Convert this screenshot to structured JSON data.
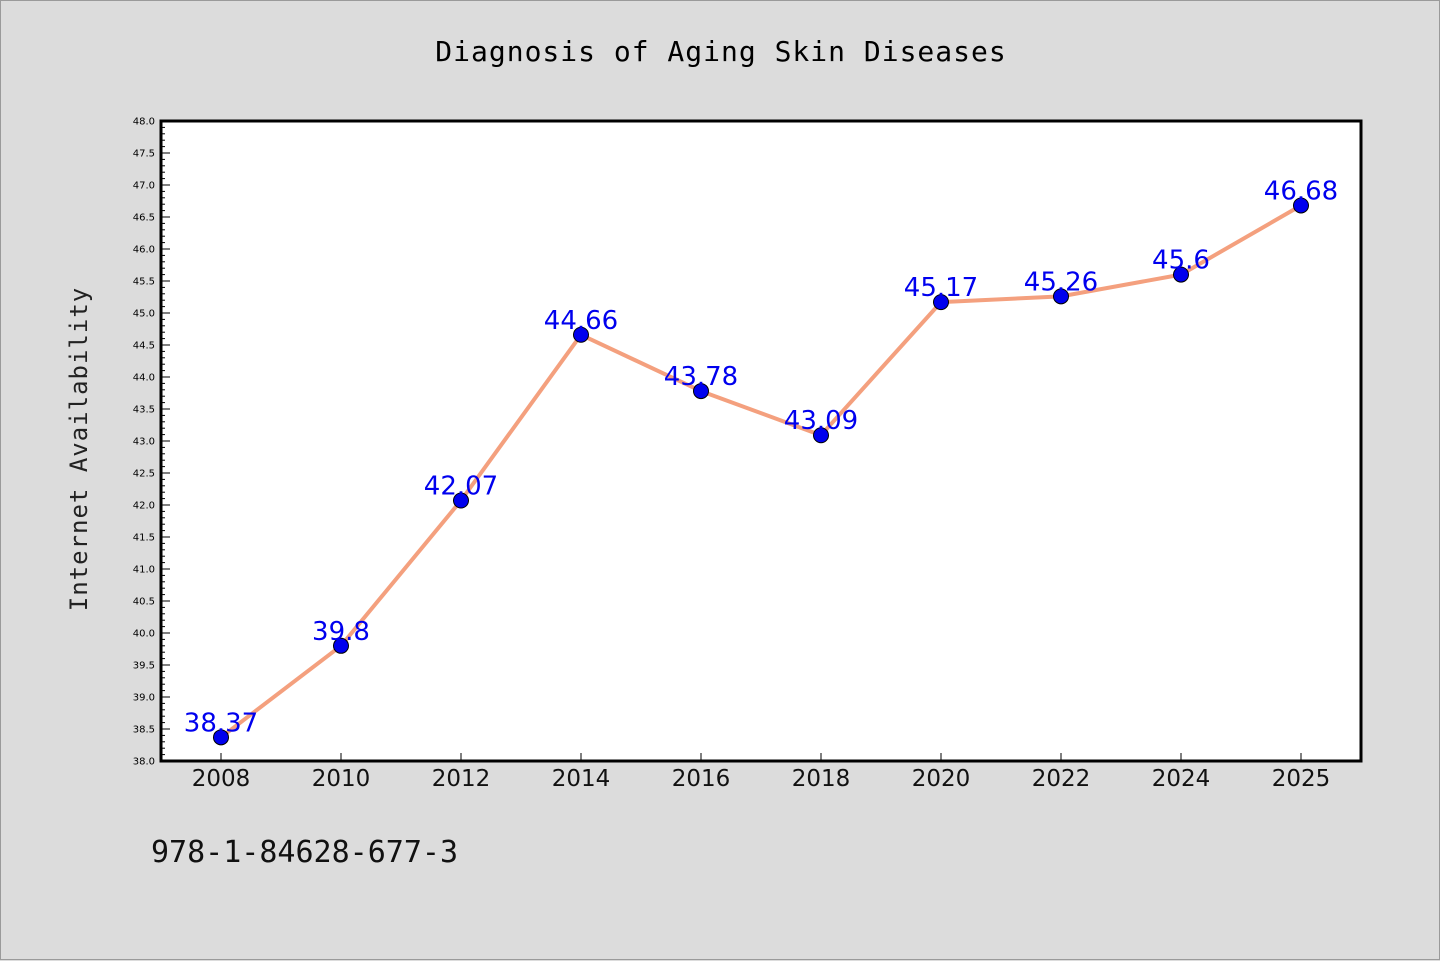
{
  "chart_data": {
    "type": "line",
    "title": "Diagnosis of Aging Skin Diseases",
    "xlabel": "",
    "ylabel": "Internet Availability",
    "categories": [
      "2008",
      "2010",
      "2012",
      "2014",
      "2016",
      "2018",
      "2020",
      "2022",
      "2024",
      "2025"
    ],
    "series": [
      {
        "values": [
          38.37,
          39.8,
          42.07,
          44.66,
          43.78,
          43.09,
          45.17,
          45.26,
          45.6,
          46.68
        ]
      }
    ],
    "data_labels": [
      "38.37",
      "39.8",
      "42.07",
      "44.66",
      "43.78",
      "43.09",
      "45.17",
      "45.26",
      "45.6",
      "46.68"
    ],
    "ylim": [
      38.0,
      48.0
    ],
    "y_major_step": 0.5,
    "y_tick_labels": [
      "38.0",
      "38.5",
      "39.0",
      "39.5",
      "40.0",
      "40.5",
      "41.0",
      "41.5",
      "42.0",
      "42.5",
      "43.0",
      "43.5",
      "44.0",
      "44.5",
      "45.0",
      "45.5",
      "46.0",
      "46.5",
      "47.0",
      "47.5",
      "48.0"
    ],
    "grid": false,
    "legend": "none",
    "colors": {
      "line": "#f4a07e",
      "marker": "#0000ee",
      "label": "#0000ee",
      "background": "#dcdcdc",
      "plot_background": "#ffffff"
    }
  },
  "annotations": {
    "footer_code": "978-1-84628-677-3"
  }
}
